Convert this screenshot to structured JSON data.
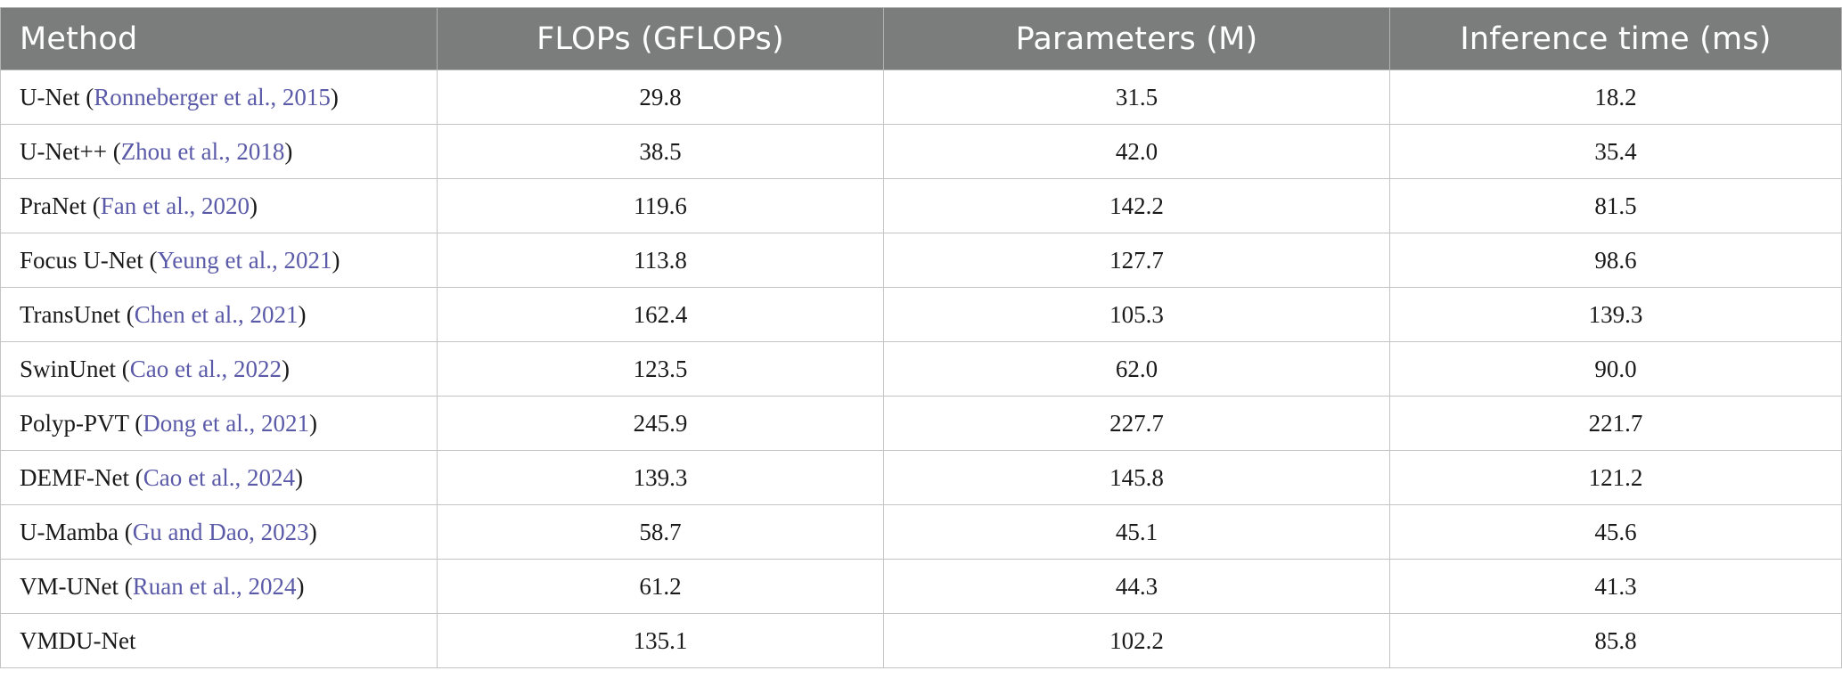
{
  "table": {
    "headers": [
      "Method",
      "FLOPs (GFLOPs)",
      "Parameters (M)",
      "Inference time (ms)"
    ],
    "rows": [
      {
        "method": "U-Net",
        "citation": "Ronneberger et al., 2015",
        "flops": "29.8",
        "params": "31.5",
        "time": "18.2"
      },
      {
        "method": "U-Net++",
        "citation": "Zhou et al., 2018",
        "flops": "38.5",
        "params": "42.0",
        "time": "35.4"
      },
      {
        "method": "PraNet",
        "citation": "Fan et al., 2020",
        "flops": "119.6",
        "params": "142.2",
        "time": "81.5"
      },
      {
        "method": "Focus U-Net",
        "citation": "Yeung et al., 2021",
        "flops": "113.8",
        "params": "127.7",
        "time": "98.6"
      },
      {
        "method": "TransUnet",
        "citation": "Chen et al., 2021",
        "flops": "162.4",
        "params": "105.3",
        "time": "139.3"
      },
      {
        "method": "SwinUnet",
        "citation": "Cao et al., 2022",
        "flops": "123.5",
        "params": "62.0",
        "time": "90.0"
      },
      {
        "method": "Polyp-PVT",
        "citation": "Dong et al., 2021",
        "flops": "245.9",
        "params": "227.7",
        "time": "221.7"
      },
      {
        "method": "DEMF-Net",
        "citation": "Cao et al., 2024",
        "flops": "139.3",
        "params": "145.8",
        "time": "121.2"
      },
      {
        "method": "U-Mamba",
        "citation": "Gu and Dao, 2023",
        "flops": "58.7",
        "params": "45.1",
        "time": "45.6"
      },
      {
        "method": "VM-UNet",
        "citation": "Ruan et al., 2024",
        "flops": "61.2",
        "params": "44.3",
        "time": "41.3"
      },
      {
        "method": "VMDU-Net",
        "citation": "",
        "flops": "135.1",
        "params": "102.2",
        "time": "85.8"
      }
    ]
  },
  "colors": {
    "header_bg": "#7b7d7c",
    "header_text": "#ffffff",
    "citation_link": "#5a5aa8",
    "grid_line": "#c4c4c4"
  }
}
